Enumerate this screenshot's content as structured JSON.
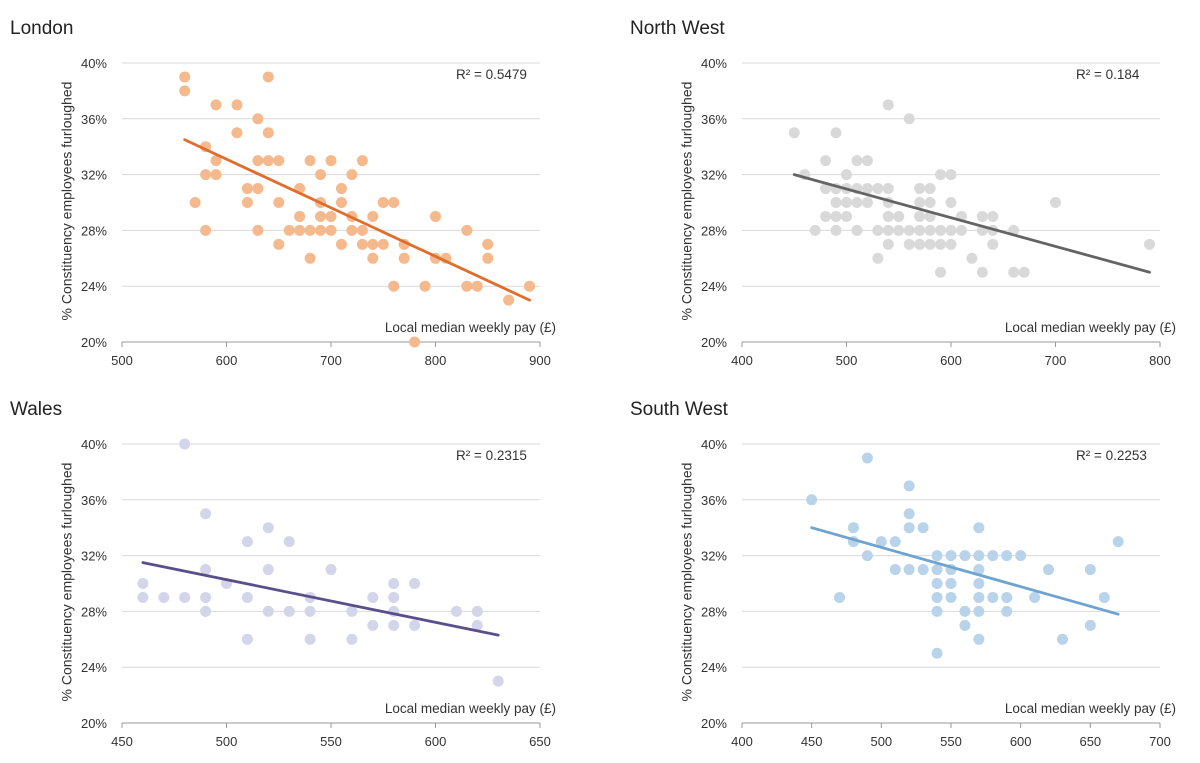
{
  "chart_data": [
    {
      "type": "scatter",
      "title": "London",
      "xlabel": "Local median weekly pay (£)",
      "ylabel": "% Constituency employees furloughed",
      "r2_label": "R² = 0.5479",
      "xlim": [
        500,
        900
      ],
      "xticks": [
        500,
        600,
        700,
        800,
        900
      ],
      "ylim": [
        20,
        40
      ],
      "yticks": [
        20,
        24,
        28,
        32,
        36,
        40
      ],
      "point_color": "#f5b98e",
      "line_color": "#e06d2c",
      "trendline": {
        "x": [
          560,
          890
        ],
        "y": [
          34.5,
          23.0
        ]
      },
      "points": [
        [
          560,
          39
        ],
        [
          560,
          38
        ],
        [
          570,
          30
        ],
        [
          580,
          34
        ],
        [
          580,
          32
        ],
        [
          580,
          28
        ],
        [
          590,
          37
        ],
        [
          590,
          33
        ],
        [
          590,
          32
        ],
        [
          610,
          37
        ],
        [
          610,
          35
        ],
        [
          620,
          31
        ],
        [
          620,
          30
        ],
        [
          630,
          36
        ],
        [
          630,
          33
        ],
        [
          630,
          31
        ],
        [
          630,
          28
        ],
        [
          640,
          39
        ],
        [
          640,
          35
        ],
        [
          640,
          33
        ],
        [
          650,
          33
        ],
        [
          650,
          30
        ],
        [
          650,
          27
        ],
        [
          660,
          28
        ],
        [
          670,
          31
        ],
        [
          670,
          29
        ],
        [
          670,
          28
        ],
        [
          680,
          33
        ],
        [
          680,
          28
        ],
        [
          680,
          26
        ],
        [
          690,
          32
        ],
        [
          690,
          30
        ],
        [
          690,
          29
        ],
        [
          690,
          28
        ],
        [
          700,
          33
        ],
        [
          700,
          29
        ],
        [
          700,
          28
        ],
        [
          710,
          31
        ],
        [
          710,
          30
        ],
        [
          710,
          27
        ],
        [
          720,
          32
        ],
        [
          720,
          29
        ],
        [
          720,
          28
        ],
        [
          730,
          33
        ],
        [
          730,
          28
        ],
        [
          730,
          27
        ],
        [
          740,
          29
        ],
        [
          740,
          27
        ],
        [
          740,
          26
        ],
        [
          750,
          27
        ],
        [
          750,
          30
        ],
        [
          760,
          30
        ],
        [
          760,
          24
        ],
        [
          770,
          27
        ],
        [
          770,
          26
        ],
        [
          780,
          20
        ],
        [
          790,
          24
        ],
        [
          800,
          29
        ],
        [
          800,
          26
        ],
        [
          810,
          26
        ],
        [
          830,
          28
        ],
        [
          830,
          24
        ],
        [
          840,
          24
        ],
        [
          850,
          27
        ],
        [
          850,
          26
        ],
        [
          870,
          23
        ],
        [
          890,
          24
        ]
      ]
    },
    {
      "type": "scatter",
      "title": "North West",
      "xlabel": "Local median weekly pay (£)",
      "ylabel": "% Constituency employees furloughed",
      "r2_label": "R² = 0.184",
      "xlim": [
        400,
        800
      ],
      "xticks": [
        400,
        500,
        600,
        700,
        800
      ],
      "ylim": [
        20,
        40
      ],
      "yticks": [
        20,
        24,
        28,
        32,
        36,
        40
      ],
      "point_color": "#d9d9d9",
      "line_color": "#646464",
      "trendline": {
        "x": [
          450,
          790
        ],
        "y": [
          32.0,
          25.0
        ]
      },
      "points": [
        [
          450,
          35
        ],
        [
          460,
          32
        ],
        [
          470,
          28
        ],
        [
          480,
          33
        ],
        [
          480,
          31
        ],
        [
          480,
          29
        ],
        [
          490,
          35
        ],
        [
          490,
          31
        ],
        [
          490,
          30
        ],
        [
          490,
          29
        ],
        [
          490,
          28
        ],
        [
          500,
          32
        ],
        [
          500,
          31
        ],
        [
          500,
          30
        ],
        [
          500,
          29
        ],
        [
          510,
          33
        ],
        [
          510,
          31
        ],
        [
          510,
          30
        ],
        [
          510,
          28
        ],
        [
          520,
          33
        ],
        [
          520,
          31
        ],
        [
          520,
          30
        ],
        [
          530,
          31
        ],
        [
          530,
          28
        ],
        [
          530,
          26
        ],
        [
          540,
          37
        ],
        [
          540,
          31
        ],
        [
          540,
          30
        ],
        [
          540,
          29
        ],
        [
          540,
          28
        ],
        [
          540,
          27
        ],
        [
          550,
          29
        ],
        [
          550,
          28
        ],
        [
          560,
          36
        ],
        [
          560,
          28
        ],
        [
          560,
          27
        ],
        [
          570,
          31
        ],
        [
          570,
          30
        ],
        [
          570,
          29
        ],
        [
          570,
          28
        ],
        [
          570,
          27
        ],
        [
          580,
          31
        ],
        [
          580,
          30
        ],
        [
          580,
          29
        ],
        [
          580,
          28
        ],
        [
          580,
          27
        ],
        [
          590,
          32
        ],
        [
          590,
          28
        ],
        [
          590,
          27
        ],
        [
          590,
          25
        ],
        [
          600,
          32
        ],
        [
          600,
          30
        ],
        [
          600,
          28
        ],
        [
          600,
          27
        ],
        [
          610,
          29
        ],
        [
          610,
          28
        ],
        [
          620,
          26
        ],
        [
          630,
          29
        ],
        [
          630,
          28
        ],
        [
          630,
          25
        ],
        [
          640,
          29
        ],
        [
          640,
          28
        ],
        [
          640,
          27
        ],
        [
          660,
          28
        ],
        [
          660,
          25
        ],
        [
          670,
          25
        ],
        [
          700,
          30
        ],
        [
          790,
          27
        ]
      ]
    },
    {
      "type": "scatter",
      "title": "Wales",
      "xlabel": "Local median weekly pay (£)",
      "ylabel": "% Constituency employees furloughed",
      "r2_label": "R² = 0.2315",
      "xlim": [
        450,
        650
      ],
      "xticks": [
        450,
        500,
        550,
        600,
        650
      ],
      "ylim": [
        20,
        40
      ],
      "yticks": [
        20,
        24,
        28,
        32,
        36,
        40
      ],
      "point_color": "#d4d4ea",
      "line_color": "#5a4f8a",
      "trendline": {
        "x": [
          460,
          630
        ],
        "y": [
          31.5,
          26.3
        ]
      },
      "points": [
        [
          460,
          30
        ],
        [
          460,
          29
        ],
        [
          470,
          29
        ],
        [
          480,
          40
        ],
        [
          480,
          29
        ],
        [
          490,
          35
        ],
        [
          490,
          31
        ],
        [
          490,
          29
        ],
        [
          490,
          28
        ],
        [
          500,
          30
        ],
        [
          510,
          33
        ],
        [
          510,
          29
        ],
        [
          510,
          26
        ],
        [
          520,
          34
        ],
        [
          520,
          31
        ],
        [
          520,
          28
        ],
        [
          530,
          33
        ],
        [
          530,
          28
        ],
        [
          540,
          29
        ],
        [
          540,
          28
        ],
        [
          540,
          26
        ],
        [
          550,
          31
        ],
        [
          560,
          28
        ],
        [
          560,
          26
        ],
        [
          570,
          29
        ],
        [
          570,
          27
        ],
        [
          580,
          30
        ],
        [
          580,
          29
        ],
        [
          580,
          28
        ],
        [
          580,
          27
        ],
        [
          590,
          30
        ],
        [
          590,
          27
        ],
        [
          610,
          28
        ],
        [
          620,
          28
        ],
        [
          620,
          27
        ],
        [
          630,
          23
        ]
      ]
    },
    {
      "type": "scatter",
      "title": "South West",
      "xlabel": "Local median weekly pay (£)",
      "ylabel": "% Constituency employees furloughed",
      "r2_label": "R² = 0.2253",
      "xlim": [
        400,
        700
      ],
      "xticks": [
        400,
        450,
        500,
        550,
        600,
        650,
        700
      ],
      "ylim": [
        20,
        40
      ],
      "yticks": [
        20,
        24,
        28,
        32,
        36,
        40
      ],
      "point_color": "#b9d3ea",
      "line_color": "#6fa3d0",
      "trendline": {
        "x": [
          450,
          670
        ],
        "y": [
          34.0,
          27.8
        ]
      },
      "points": [
        [
          450,
          36
        ],
        [
          470,
          29
        ],
        [
          480,
          34
        ],
        [
          480,
          33
        ],
        [
          490,
          39
        ],
        [
          490,
          32
        ],
        [
          500,
          33
        ],
        [
          510,
          33
        ],
        [
          510,
          31
        ],
        [
          520,
          37
        ],
        [
          520,
          35
        ],
        [
          520,
          34
        ],
        [
          520,
          31
        ],
        [
          530,
          34
        ],
        [
          530,
          31
        ],
        [
          540,
          32
        ],
        [
          540,
          31
        ],
        [
          540,
          30
        ],
        [
          540,
          29
        ],
        [
          540,
          28
        ],
        [
          540,
          25
        ],
        [
          550,
          32
        ],
        [
          550,
          31
        ],
        [
          550,
          30
        ],
        [
          550,
          29
        ],
        [
          560,
          32
        ],
        [
          560,
          28
        ],
        [
          560,
          27
        ],
        [
          570,
          34
        ],
        [
          570,
          32
        ],
        [
          570,
          31
        ],
        [
          570,
          30
        ],
        [
          570,
          29
        ],
        [
          570,
          28
        ],
        [
          570,
          26
        ],
        [
          580,
          32
        ],
        [
          580,
          29
        ],
        [
          590,
          32
        ],
        [
          590,
          29
        ],
        [
          590,
          28
        ],
        [
          600,
          32
        ],
        [
          610,
          29
        ],
        [
          620,
          31
        ],
        [
          630,
          26
        ],
        [
          650,
          31
        ],
        [
          650,
          27
        ],
        [
          660,
          29
        ],
        [
          670,
          33
        ]
      ]
    }
  ]
}
